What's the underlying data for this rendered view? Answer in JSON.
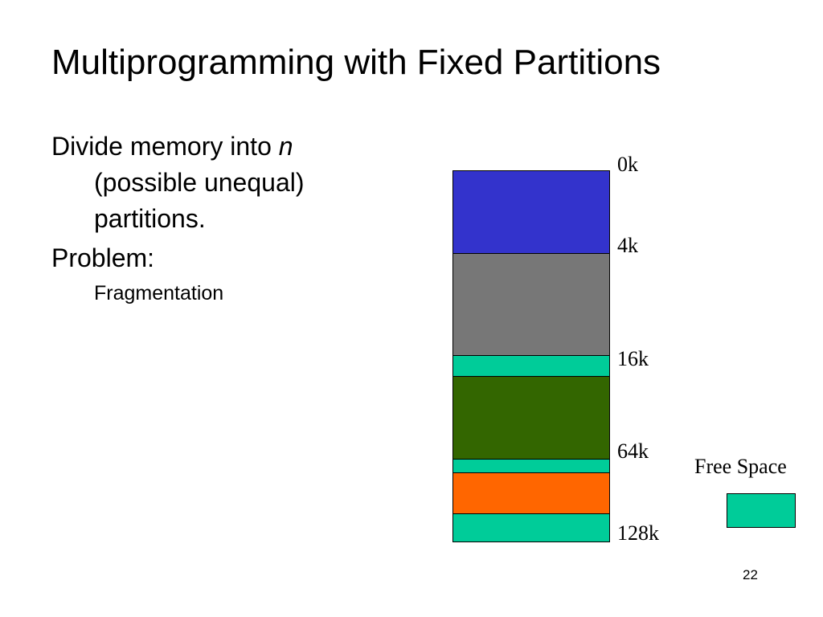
{
  "slide": {
    "title": "Multiprogramming with Fixed Partitions",
    "page_number": "22"
  },
  "bullets": {
    "divide_prefix": "Divide memory into ",
    "divide_var": "n",
    "divide_suffix": " (possible unequal) partitions.",
    "problem": "Problem:",
    "sub": "Fragmentation"
  },
  "memory": {
    "partitions": [
      {
        "name": "partition-1",
        "color": "#3333cc"
      },
      {
        "name": "partition-2",
        "color": "#777777"
      },
      {
        "name": "free-space",
        "color": "#00cc99"
      },
      {
        "name": "partition-3",
        "color": "#336600"
      },
      {
        "name": "free-space",
        "color": "#00cc99"
      },
      {
        "name": "partition-4",
        "color": "#ff6600"
      },
      {
        "name": "free-space",
        "color": "#00cc99"
      }
    ],
    "markers": [
      "0k",
      "4k",
      "16k",
      "64k",
      "128k"
    ]
  },
  "legend": {
    "label": "Free Space",
    "color": "#00cc99"
  }
}
